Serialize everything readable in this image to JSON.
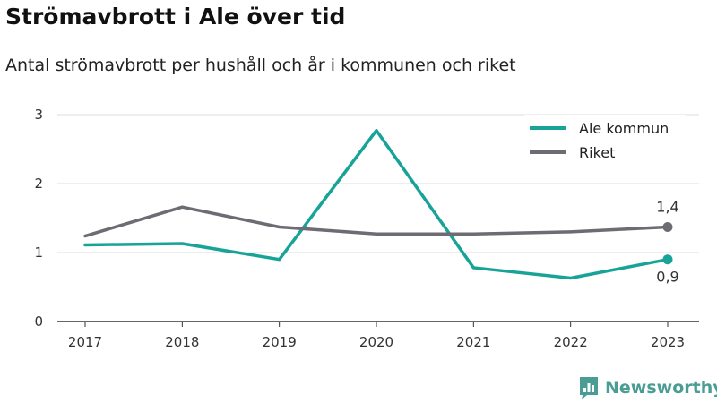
{
  "title": "Strömavbrott i Ale över tid",
  "subtitle": "Antal strömavbrott per hushåll och år i kommunen och riket",
  "brand": {
    "name": "Newsworthy"
  },
  "colors": {
    "ale": "#17a398",
    "riket": "#6e6b73",
    "grid": "#dddddd",
    "axis": "#333333"
  },
  "chart_data": {
    "type": "line",
    "title": "Strömavbrott i Ale över tid",
    "subtitle": "Antal strömavbrott per hushåll och år i kommunen och riket",
    "x": [
      "2017",
      "2018",
      "2019",
      "2020",
      "2021",
      "2022",
      "2023"
    ],
    "y_ticks": [
      "0",
      "1",
      "2",
      "3"
    ],
    "ylim": [
      0,
      3
    ],
    "grid": true,
    "legend_position": "top-right",
    "series": [
      {
        "name": "Ale kommun",
        "color": "#17a398",
        "values": [
          1.11,
          1.13,
          0.9,
          2.77,
          0.78,
          0.63,
          0.9
        ],
        "end_label": "0,9"
      },
      {
        "name": "Riket",
        "color": "#6e6b73",
        "values": [
          1.24,
          1.66,
          1.37,
          1.27,
          1.27,
          1.3,
          1.37
        ],
        "end_label": "1,4"
      }
    ]
  }
}
